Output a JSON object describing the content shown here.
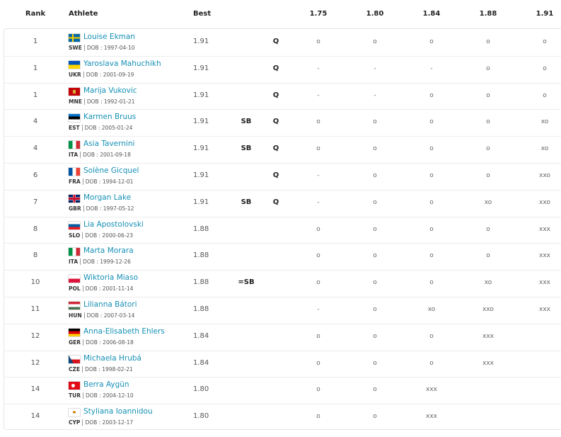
{
  "table": {
    "header": [
      "Rank",
      "Athlete",
      "Best",
      "1.75",
      "1.80",
      "1.84",
      "1.88",
      "1.91"
    ],
    "rows": [
      {
        "rank": 1,
        "name": "Louise Ekman",
        "country": "SWE",
        "dob": "DOB : 1997-04-10",
        "best": "1.91",
        "note": null,
        "q": "Q",
        "attempts": [
          "o",
          "o",
          "o",
          "o",
          "o"
        ]
      },
      {
        "rank": 1,
        "name": "Yaroslava Mahuchikh",
        "country": "UKR",
        "dob": "DOB : 2001-09-19",
        "best": "1.91",
        "note": null,
        "q": "Q",
        "attempts": [
          "-",
          "-",
          "-",
          "o",
          "o"
        ]
      },
      {
        "rank": 1,
        "name": "Marija Vukovic",
        "country": "MNE",
        "dob": "DOB : 1992-01-21",
        "best": "1.91",
        "note": null,
        "q": "Q",
        "attempts": [
          "-",
          "-",
          "o",
          "o",
          "o"
        ]
      },
      {
        "rank": 4,
        "name": "Karmen Bruus",
        "country": "EST",
        "dob": "DOB : 2005-01-24",
        "best": "1.91",
        "note": "SB",
        "q": "Q",
        "attempts": [
          "o",
          "o",
          "o",
          "o",
          "xo"
        ]
      },
      {
        "rank": 4,
        "name": "Asia Tavernini",
        "country": "ITA",
        "dob": "DOB : 2001-09-18",
        "best": "1.91",
        "note": "SB",
        "q": "Q",
        "attempts": [
          "o",
          "o",
          "o",
          "o",
          "xo"
        ]
      },
      {
        "rank": 6,
        "name": "Solène Gicquel",
        "country": "FRA",
        "dob": "DOB : 1994-12-01",
        "best": "1.91",
        "note": null,
        "q": "Q",
        "attempts": [
          "-",
          "o",
          "o",
          "o",
          "xxo"
        ]
      },
      {
        "rank": 7,
        "name": "Morgan Lake",
        "country": "GBR",
        "dob": "DOB : 1997-05-12",
        "best": "1.91",
        "note": "SB",
        "q": "Q",
        "attempts": [
          "-",
          "o",
          "o",
          "xo",
          "xxo"
        ]
      },
      {
        "rank": 8,
        "name": "Lia Apostolovski",
        "country": "SLO",
        "dob": "DOB : 2000-06-23",
        "best": "1.88",
        "note": null,
        "q": null,
        "attempts": [
          "o",
          "o",
          "o",
          "o",
          "xxx"
        ]
      },
      {
        "rank": 8,
        "name": "Marta Morara",
        "country": "ITA",
        "dob": "DOB : 1999-12-26",
        "best": "1.88",
        "note": null,
        "q": null,
        "attempts": [
          "o",
          "o",
          "o",
          "o",
          "xxx"
        ]
      },
      {
        "rank": 10,
        "name": "Wiktoria Miaso",
        "country": "POL",
        "dob": "DOB : 2001-11-14",
        "best": "1.88",
        "note": "=SB",
        "q": null,
        "attempts": [
          "o",
          "o",
          "o",
          "xo",
          "xxx"
        ]
      },
      {
        "rank": 11,
        "name": "Lilianna Bátori",
        "country": "HUN",
        "dob": "DOB : 2007-03-14",
        "best": "1.88",
        "note": null,
        "q": null,
        "attempts": [
          "-",
          "o",
          "xo",
          "xxo",
          "xxx"
        ]
      },
      {
        "rank": 12,
        "name": "Anna-Elisabeth Ehlers",
        "country": "GER",
        "dob": "DOB : 2006-08-18",
        "best": "1.84",
        "note": null,
        "q": null,
        "attempts": [
          "o",
          "o",
          "o",
          "xxx",
          null
        ]
      },
      {
        "rank": 12,
        "name": "Michaela Hrubá",
        "country": "CZE",
        "dob": "DOB : 1998-02-21",
        "best": "1.84",
        "note": null,
        "q": null,
        "attempts": [
          "o",
          "o",
          "o",
          "xxx",
          null
        ]
      },
      {
        "rank": 14,
        "name": "Berra Aygün",
        "country": "TUR",
        "dob": "DOB : 2004-12-10",
        "best": "1.80",
        "note": null,
        "q": null,
        "attempts": [
          "o",
          "o",
          "xxx",
          null,
          null
        ]
      },
      {
        "rank": 14,
        "name": "Styliana Ioannidou",
        "country": "CYP",
        "dob": "DOB : 2003-12-17",
        "best": "1.80",
        "note": null,
        "q": null,
        "attempts": [
          "o",
          "o",
          "xxx",
          null,
          null
        ]
      }
    ]
  }
}
